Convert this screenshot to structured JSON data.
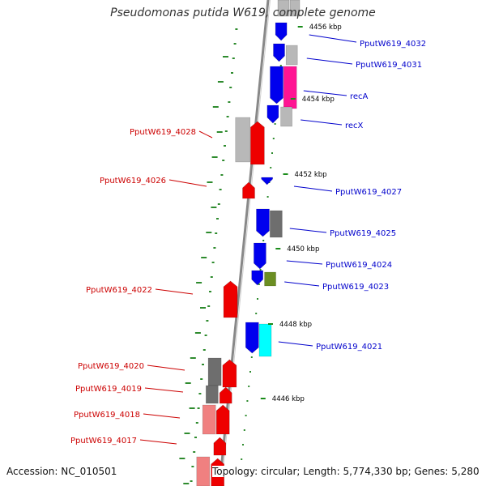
{
  "title": "Pseudomonas putida W619, complete genome",
  "accession": "Accession: NC_010501",
  "topology": "Topology: circular; Length: 5,774,330 bp; Genes: 5,280",
  "colors": {
    "backbone": "#888888",
    "ticks": "#1a8c1a",
    "gc_dots": "#2e8b2e",
    "reverse_label": "#cc0000",
    "forward_label": "#0000cc"
  },
  "scale_labels": [
    "4456 kbp",
    "4454 kbp",
    "4452 kbp",
    "4450 kbp",
    "4448 kbp",
    "4446 kbp"
  ],
  "forward_genes": [
    {
      "label": "PputW619_4032",
      "color": "blue"
    },
    {
      "label": "PputW619_4031",
      "color": "blue"
    },
    {
      "label": "recA",
      "color": "blue"
    },
    {
      "label": "recX",
      "color": "blue"
    },
    {
      "label": "PputW619_4027",
      "color": "blue"
    },
    {
      "label": "PputW619_4025",
      "color": "blue"
    },
    {
      "label": "PputW619_4024",
      "color": "blue"
    },
    {
      "label": "PputW619_4023",
      "color": "blue"
    },
    {
      "label": "PputW619_4021",
      "color": "blue"
    }
  ],
  "reverse_genes": [
    {
      "label": "PputW619_4028",
      "color": "red"
    },
    {
      "label": "PputW619_4026",
      "color": "red"
    },
    {
      "label": "PputW619_4022",
      "color": "red"
    },
    {
      "label": "PputW619_4020",
      "color": "red"
    },
    {
      "label": "PputW619_4019",
      "color": "red"
    },
    {
      "label": "PputW619_4018",
      "color": "red"
    },
    {
      "label": "PputW619_4017",
      "color": "red"
    }
  ]
}
